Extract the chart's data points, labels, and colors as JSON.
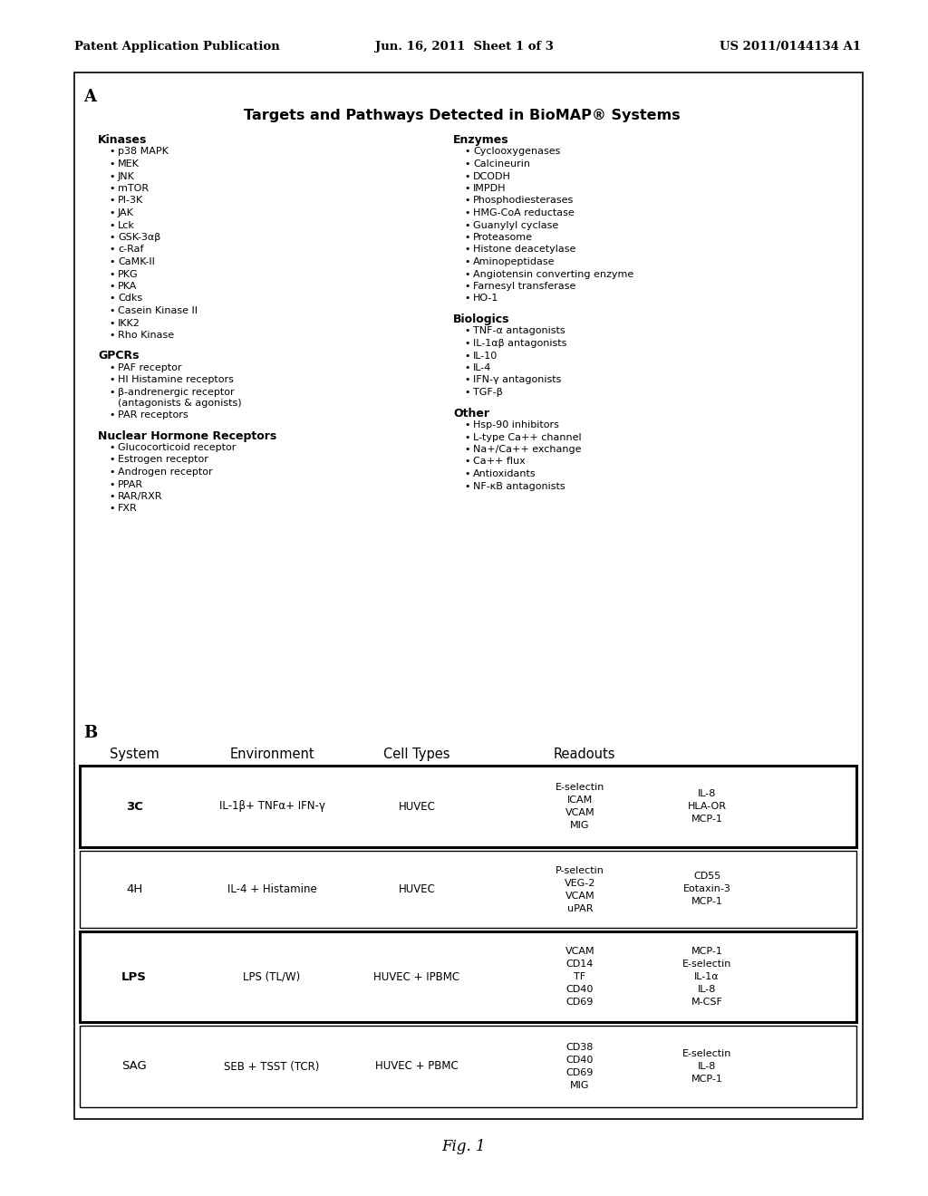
{
  "header_left": "Patent Application Publication",
  "header_center": "Jun. 16, 2011  Sheet 1 of 3",
  "header_right": "US 2011/0144134 A1",
  "footer": "Fig. 1",
  "section_A_label": "A",
  "section_A_title": "Targets and Pathways Detected in BioMAP® Systems",
  "col1_header": "Kinases",
  "col1_items": [
    "p38 MAPK",
    "MEK",
    "JNK",
    "mTOR",
    "PI-3K",
    "JAK",
    "Lck",
    "GSK-3αβ",
    "c-Raf",
    "CaMK-II",
    "PKG",
    "PKA",
    "Cdks",
    "Casein Kinase II",
    "IKK2",
    "Rho Kinase"
  ],
  "col1b_header": "GPCRs",
  "col1b_items": [
    "PAF receptor",
    "HI Histamine receptors",
    "β-andrenergic receptor|(antagonists & agonists)",
    "PAR receptors"
  ],
  "col1c_header": "Nuclear Hormone Receptors",
  "col1c_items": [
    "Glucocorticoid receptor",
    "Estrogen receptor",
    "Androgen receptor",
    "PPAR",
    "RAR/RXR",
    "FXR"
  ],
  "col2_header": "Enzymes",
  "col2_items": [
    "Cyclooxygenases",
    "Calcineurin",
    "DCODH",
    "IMPDH",
    "Phosphodiesterases",
    "HMG-CoA reductase",
    "Guanylyl cyclase",
    "Proteasome",
    "Histone deacetylase",
    "Aminopeptidase",
    "Angiotensin converting enzyme",
    "Farnesyl transferase",
    "HO-1"
  ],
  "col2b_header": "Biologics",
  "col2b_items": [
    "TNF-α antagonists",
    "IL-1αβ antagonists",
    "IL-10",
    "IL-4",
    "IFN-γ antagonists",
    "TGF-β"
  ],
  "col2c_header": "Other",
  "col2c_items": [
    "Hsp-90 inhibitors",
    "L-type Ca++ channel",
    "Na+/Ca++ exchange",
    "Ca++ flux",
    "Antioxidants",
    "NF-κB antagonists"
  ],
  "section_B_label": "B",
  "table_headers": [
    "System",
    "Environment",
    "Cell Types",
    "Readouts"
  ],
  "table_rows": [
    {
      "system": "3C",
      "environment": "IL-1β+ TNFα+ IFN-γ",
      "cell_types": "HUVEC",
      "readouts_left": "E-selectin\nICAM\nVCAM\nMIG",
      "readouts_right": "IL-8\nHLA-OR\nMCP-1",
      "bold_border": true
    },
    {
      "system": "4H",
      "environment": "IL-4 + Histamine",
      "cell_types": "HUVEC",
      "readouts_left": "P-selectin\nVEG-2\nVCAM\nuPAR",
      "readouts_right": "CD55\nEotaxin-3\nMCP-1",
      "bold_border": false
    },
    {
      "system": "LPS",
      "environment": "LPS (TL/W)",
      "cell_types": "HUVEC + IPBMC",
      "readouts_left": "VCAM\nCD14\nTF\nCD40\nCD69",
      "readouts_right": "MCP-1\nE-selectin\nIL-1α\nIL-8\nM-CSF",
      "bold_border": true
    },
    {
      "system": "SAG",
      "environment": "SEB + TSST (TCR)",
      "cell_types": "HUVEC + PBMC",
      "readouts_left": "CD38\nCD40\nCD69\nMIG",
      "readouts_right": "E-selectin\nIL-8\nMCP-1",
      "bold_border": false
    }
  ]
}
